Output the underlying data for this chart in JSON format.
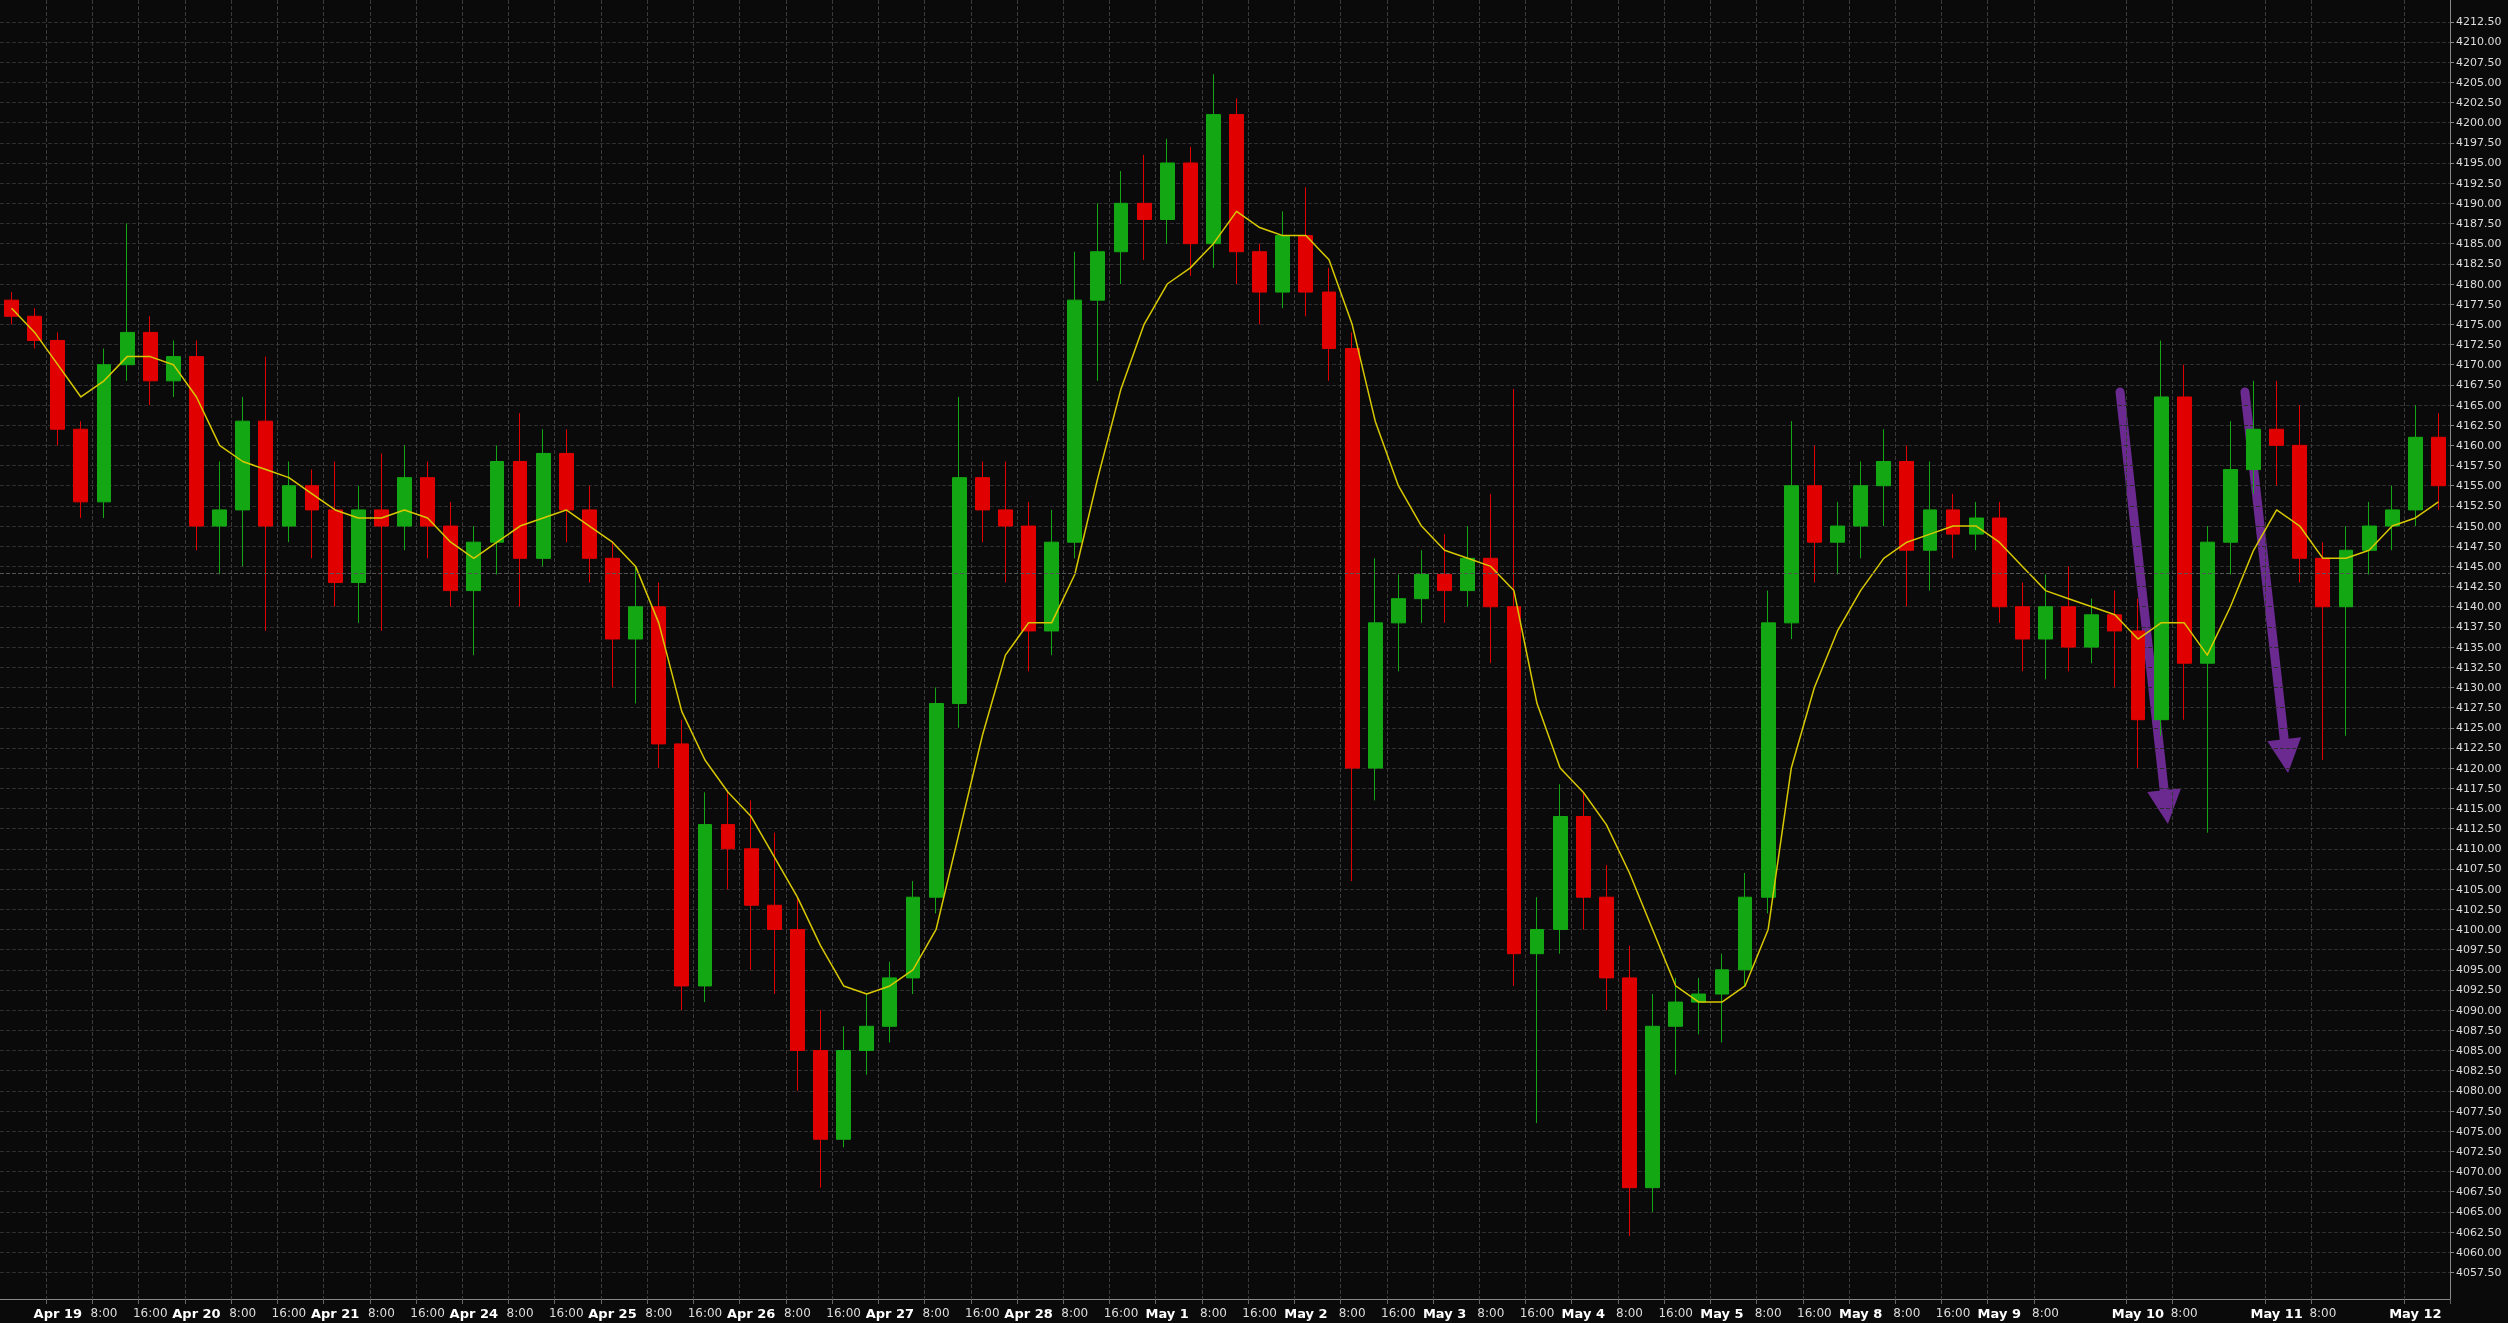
{
  "chart_data": {
    "type": "candlestick",
    "categories": [
      null,
      null,
      "Apr 19",
      null,
      "8:00",
      null,
      "16:00",
      null,
      "Apr 20",
      null,
      "8:00",
      null,
      "16:00",
      null,
      "Apr 21",
      null,
      "8:00",
      null,
      "16:00",
      null,
      "Apr 24",
      null,
      "8:00",
      null,
      "16:00",
      null,
      "Apr 25",
      null,
      "8:00",
      null,
      "16:00",
      null,
      "Apr 26",
      null,
      "8:00",
      null,
      "16:00",
      null,
      "Apr 27",
      null,
      "8:00",
      null,
      "16:00",
      null,
      "Apr 28",
      null,
      "8:00",
      null,
      "16:00",
      null,
      "May 1",
      null,
      "8:00",
      null,
      "16:00",
      null,
      "May 2",
      null,
      "8:00",
      null,
      "16:00",
      null,
      "May 3",
      null,
      "8:00",
      null,
      "16:00",
      null,
      "May 4",
      null,
      "8:00",
      null,
      "16:00",
      null,
      "May 5",
      null,
      "8:00",
      null,
      "16:00",
      null,
      "May 8",
      null,
      "8:00",
      null,
      "16:00",
      null,
      "May 9",
      null,
      "8:00",
      null,
      null,
      null,
      "May 10",
      null,
      "8:00",
      null,
      null,
      null,
      "May 11",
      null,
      "8:00",
      null,
      null,
      null,
      "May 12",
      null
    ],
    "ohlc": [
      [
        4178,
        4179,
        4175,
        4176
      ],
      [
        4176,
        4177,
        4172,
        4173
      ],
      [
        4173,
        4174,
        4160,
        4162
      ],
      [
        4162,
        4163,
        4151,
        4153
      ],
      [
        4153,
        4172,
        4151,
        4170
      ],
      [
        4170,
        4187.5,
        4168,
        4174
      ],
      [
        4174,
        4176,
        4165,
        4168
      ],
      [
        4168,
        4173,
        4166,
        4171
      ],
      [
        4171,
        4173,
        4147,
        4150
      ],
      [
        4150,
        4158,
        4144,
        4152
      ],
      [
        4152,
        4166,
        4145,
        4163
      ],
      [
        4163,
        4171,
        4137,
        4150
      ],
      [
        4150,
        4158,
        4148,
        4155
      ],
      [
        4155,
        4157,
        4146,
        4152
      ],
      [
        4152,
        4158,
        4140,
        4143
      ],
      [
        4143,
        4155,
        4138,
        4152
      ],
      [
        4152,
        4159,
        4137,
        4150
      ],
      [
        4150,
        4160,
        4147,
        4156
      ],
      [
        4156,
        4158,
        4146,
        4150
      ],
      [
        4150,
        4153,
        4140,
        4142
      ],
      [
        4142,
        4150,
        4134,
        4148
      ],
      [
        4148,
        4160,
        4144,
        4158
      ],
      [
        4158,
        4164,
        4140,
        4146
      ],
      [
        4146,
        4162,
        4145,
        4159
      ],
      [
        4159,
        4162,
        4148,
        4152
      ],
      [
        4152,
        4155,
        4143,
        4146
      ],
      [
        4146,
        4148,
        4130,
        4136
      ],
      [
        4136,
        4145,
        4128,
        4140
      ],
      [
        4140,
        4143,
        4120,
        4123
      ],
      [
        4123,
        4126,
        4090,
        4093
      ],
      [
        4093,
        4117,
        4091,
        4113
      ],
      [
        4113,
        4117,
        4105,
        4110
      ],
      [
        4110,
        4116,
        4095,
        4103
      ],
      [
        4103,
        4112,
        4092,
        4100
      ],
      [
        4100,
        4104,
        4080,
        4085
      ],
      [
        4085,
        4090,
        4068,
        4074
      ],
      [
        4074,
        4088,
        4073,
        4085
      ],
      [
        4085,
        4092,
        4082,
        4088
      ],
      [
        4088,
        4096,
        4086,
        4094
      ],
      [
        4094,
        4106,
        4092,
        4104
      ],
      [
        4104,
        4130,
        4102,
        4128
      ],
      [
        4128,
        4166,
        4125,
        4156
      ],
      [
        4156,
        4158,
        4148,
        4152
      ],
      [
        4152,
        4158,
        4143,
        4150
      ],
      [
        4150,
        4153,
        4132,
        4137
      ],
      [
        4137,
        4152,
        4134,
        4148
      ],
      [
        4148,
        4184,
        4146,
        4178
      ],
      [
        4178,
        4190,
        4168,
        4184
      ],
      [
        4184,
        4194,
        4180,
        4190
      ],
      [
        4190,
        4196,
        4183,
        4188
      ],
      [
        4188,
        4198,
        4185,
        4195
      ],
      [
        4195,
        4197,
        4181,
        4185
      ],
      [
        4185,
        4206,
        4182,
        4201
      ],
      [
        4201,
        4203,
        4180,
        4184
      ],
      [
        4184,
        4185,
        4175,
        4179
      ],
      [
        4179,
        4189,
        4177,
        4186
      ],
      [
        4186,
        4192,
        4176,
        4179
      ],
      [
        4179,
        4182,
        4168,
        4172
      ],
      [
        4172,
        4174,
        4106,
        4120
      ],
      [
        4120,
        4146,
        4116,
        4138
      ],
      [
        4138,
        4144,
        4132,
        4141
      ],
      [
        4141,
        4147,
        4138,
        4144
      ],
      [
        4144,
        4149,
        4138,
        4142
      ],
      [
        4142,
        4150,
        4140,
        4146
      ],
      [
        4146,
        4154,
        4133,
        4140
      ],
      [
        4140,
        4167,
        4093,
        4097
      ],
      [
        4097,
        4104,
        4076,
        4100
      ],
      [
        4100,
        4118,
        4097,
        4114
      ],
      [
        4114,
        4117,
        4100,
        4104
      ],
      [
        4104,
        4108,
        4090,
        4094
      ],
      [
        4094,
        4098,
        4062,
        4068
      ],
      [
        4068,
        4092,
        4065,
        4088
      ],
      [
        4088,
        4094,
        4082,
        4091
      ],
      [
        4091,
        4094,
        4087,
        4092
      ],
      [
        4092,
        4097,
        4086,
        4095
      ],
      [
        4095,
        4107,
        4093,
        4104
      ],
      [
        4104,
        4142,
        4102,
        4138
      ],
      [
        4138,
        4163,
        4136,
        4155
      ],
      [
        4155,
        4160,
        4143,
        4148
      ],
      [
        4148,
        4153,
        4144,
        4150
      ],
      [
        4150,
        4158,
        4146,
        4155
      ],
      [
        4155,
        4162,
        4150,
        4158
      ],
      [
        4158,
        4160,
        4140,
        4147
      ],
      [
        4147,
        4158,
        4142,
        4152
      ],
      [
        4152,
        4154,
        4146,
        4149
      ],
      [
        4149,
        4153,
        4147,
        4151
      ],
      [
        4151,
        4153,
        4138,
        4140
      ],
      [
        4140,
        4143,
        4132,
        4136
      ],
      [
        4136,
        4144,
        4131,
        4140
      ],
      [
        4140,
        4145,
        4132,
        4135
      ],
      [
        4135,
        4141,
        4133,
        4139
      ],
      [
        4139,
        4142,
        4130,
        4137
      ],
      [
        4137,
        4141,
        4120,
        4126
      ],
      [
        4126,
        4173,
        4124,
        4166
      ],
      [
        4166,
        4170,
        4126,
        4133
      ],
      [
        4133,
        4150,
        4112,
        4148
      ],
      [
        4148,
        4163,
        4144,
        4157
      ],
      [
        4157,
        4168,
        4154,
        4162
      ],
      [
        4162,
        4168,
        4155,
        4160
      ],
      [
        4160,
        4165,
        4143,
        4146
      ],
      [
        4146,
        4148,
        4121,
        4140
      ],
      [
        4140,
        4150,
        4124,
        4147
      ],
      [
        4147,
        4153,
        4144,
        4150
      ],
      [
        4150,
        4155,
        4147,
        4152
      ],
      [
        4152,
        4165,
        4150,
        4161
      ],
      [
        4161,
        4164,
        4152,
        4155
      ]
    ],
    "colors": [
      "#e00000",
      "#e00000",
      "#e00000",
      "#e00000",
      "#13a813",
      "#13a813",
      "#e00000",
      "#13a813",
      "#e00000",
      "#13a813",
      "#13a813",
      "#e00000",
      "#13a813",
      "#e00000",
      "#e00000",
      "#13a813",
      "#e00000",
      "#13a813",
      "#e00000",
      "#e00000",
      "#13a813",
      "#13a813",
      "#e00000",
      "#13a813",
      "#e00000",
      "#e00000",
      "#e00000",
      "#13a813",
      "#e00000",
      "#e00000",
      "#13a813",
      "#e00000",
      "#e00000",
      "#e00000",
      "#e00000",
      "#e00000",
      "#13a813",
      "#13a813",
      "#13a813",
      "#13a813",
      "#13a813",
      "#13a813",
      "#e00000",
      "#e00000",
      "#e00000",
      "#13a813",
      "#13a813",
      "#13a813",
      "#13a813",
      "#e00000",
      "#13a813",
      "#e00000",
      "#13a813",
      "#e00000",
      "#e00000",
      "#13a813",
      "#e00000",
      "#e00000",
      "#e00000",
      "#13a813",
      "#13a813",
      "#13a813",
      "#e00000",
      "#13a813",
      "#e00000",
      "#e00000",
      "#13a813",
      "#13a813",
      "#e00000",
      "#e00000",
      "#e00000",
      "#13a813",
      "#13a813",
      "#13a813",
      "#13a813",
      "#13a813",
      "#13a813",
      "#13a813",
      "#e00000",
      "#13a813",
      "#13a813",
      "#13a813",
      "#e00000",
      "#13a813",
      "#e00000",
      "#13a813",
      "#e00000",
      "#e00000",
      "#13a813",
      "#e00000",
      "#13a813",
      "#e00000",
      "#e00000",
      "#13a813",
      "#e00000",
      "#13a813",
      "#13a813",
      "#13a813",
      "#e00000",
      "#e00000",
      "#e00000",
      "#13a813",
      "#13a813",
      "#13a813",
      "#13a813",
      "#e00000"
    ],
    "series": [
      {
        "type": "line",
        "color": "#d8c800",
        "values": [
          4177,
          4174,
          4170,
          4166,
          4168,
          4171,
          4171,
          4170,
          4166,
          4160,
          4158,
          4157,
          4156,
          4154,
          4152,
          4151,
          4151,
          4152,
          4151,
          4148,
          4146,
          4148,
          4150,
          4151,
          4152,
          4150,
          4148,
          4145,
          4138,
          4127,
          4121,
          4117,
          4114,
          4109,
          4104,
          4098,
          4093,
          4092,
          4093,
          4095,
          4100,
          4112,
          4124,
          4134,
          4138,
          4138,
          4144,
          4156,
          4167,
          4175,
          4180,
          4182,
          4185,
          4189,
          4187,
          4186,
          4186,
          4183,
          4175,
          4163,
          4155,
          4150,
          4147,
          4146,
          4145,
          4142,
          4128,
          4120,
          4117,
          4113,
          4107,
          4100,
          4093,
          4091,
          4091,
          4093,
          4100,
          4120,
          4130,
          4137,
          4142,
          4146,
          4148,
          4149,
          4150,
          4150,
          4148,
          4145,
          4142,
          4141,
          4140,
          4139,
          4136,
          4138,
          4138,
          4134,
          4140,
          4147,
          4152,
          4150,
          4146,
          4146,
          4147,
          4150,
          4151,
          4153
        ]
      }
    ],
    "ylim": [
      4054.2,
      4215.2
    ],
    "yticks": [
      {
        "value": 4057.5,
        "label": "4057.50"
      },
      {
        "value": 4060,
        "label": "4060.00"
      },
      {
        "value": 4062.5,
        "label": "4062.50"
      },
      {
        "value": 4065,
        "label": "4065.00"
      },
      {
        "value": 4067.5,
        "label": "4067.50"
      },
      {
        "value": 4070,
        "label": "4070.00"
      },
      {
        "value": 4072.5,
        "label": "4072.50"
      },
      {
        "value": 4075,
        "label": "4075.00"
      },
      {
        "value": 4077.5,
        "label": "4077.50"
      },
      {
        "value": 4080,
        "label": "4080.00"
      },
      {
        "value": 4082.5,
        "label": "4082.50"
      },
      {
        "value": 4085,
        "label": "4085.00"
      },
      {
        "value": 4087.5,
        "label": "4087.50"
      },
      {
        "value": 4090,
        "label": "4090.00"
      },
      {
        "value": 4092.5,
        "label": "4092.50"
      },
      {
        "value": 4095,
        "label": "4095.00"
      },
      {
        "value": 4097.5,
        "label": "4097.50"
      },
      {
        "value": 4100,
        "label": "4100.00"
      },
      {
        "value": 4102.5,
        "label": "4102.50"
      },
      {
        "value": 4105,
        "label": "4105.00"
      },
      {
        "value": 4107.5,
        "label": "4107.50"
      },
      {
        "value": 4110,
        "label": "4110.00"
      },
      {
        "value": 4112.5,
        "label": "4112.50"
      },
      {
        "value": 4115,
        "label": "4115.00"
      },
      {
        "value": 4117.5,
        "label": "4117.50"
      },
      {
        "value": 4120,
        "label": "4120.00"
      },
      {
        "value": 4122.5,
        "label": "4122.50"
      },
      {
        "value": 4125,
        "label": "4125.00"
      },
      {
        "value": 4127.5,
        "label": "4127.50"
      },
      {
        "value": 4130,
        "label": "4130.00"
      },
      {
        "value": 4132.5,
        "label": "4132.50"
      },
      {
        "value": 4135,
        "label": "4135.00"
      },
      {
        "value": 4137.5,
        "label": "4137.50"
      },
      {
        "value": 4140,
        "label": "4140.00"
      },
      {
        "value": 4142.5,
        "label": "4142.50"
      },
      {
        "value": 4145,
        "label": "4145.00"
      },
      {
        "value": 4147.5,
        "label": "4147.50"
      },
      {
        "value": 4150,
        "label": "4150.00"
      },
      {
        "value": 4152.5,
        "label": "4152.50"
      },
      {
        "value": 4155,
        "label": "4155.00"
      },
      {
        "value": 4157.5,
        "label": "4157.50"
      },
      {
        "value": 4160,
        "label": "4160.00"
      },
      {
        "value": 4162.5,
        "label": "4162.50"
      },
      {
        "value": 4165,
        "label": "4165.00"
      },
      {
        "value": 4167.5,
        "label": "4167.50"
      },
      {
        "value": 4170,
        "label": "4170.00"
      },
      {
        "value": 4172.5,
        "label": "4172.50"
      },
      {
        "value": 4175,
        "label": "4175.00"
      },
      {
        "value": 4177.5,
        "label": "4177.50"
      },
      {
        "value": 4180,
        "label": "4180.00"
      },
      {
        "value": 4182.5,
        "label": "4182.50"
      },
      {
        "value": 4185,
        "label": "4185.00"
      },
      {
        "value": 4187.5,
        "label": "4187.50"
      },
      {
        "value": 4190,
        "label": "4190.00"
      },
      {
        "value": 4192.5,
        "label": "4192.50"
      },
      {
        "value": 4195,
        "label": "4195.00"
      },
      {
        "value": 4197.5,
        "label": "4197.50"
      },
      {
        "value": 4200,
        "label": "4200.00"
      },
      {
        "value": 4202.5,
        "label": "4202.50"
      },
      {
        "value": 4205,
        "label": "4205.00"
      },
      {
        "value": 4207.5,
        "label": "4207.50"
      },
      {
        "value": 4210,
        "label": "4210.00"
      },
      {
        "value": 4212.5,
        "label": "4212.50"
      }
    ],
    "ref_lines": [
      {
        "axis": "y",
        "value": 4144.2,
        "color": "#555555",
        "line_style": "dashed"
      }
    ],
    "grid": true
  }
}
